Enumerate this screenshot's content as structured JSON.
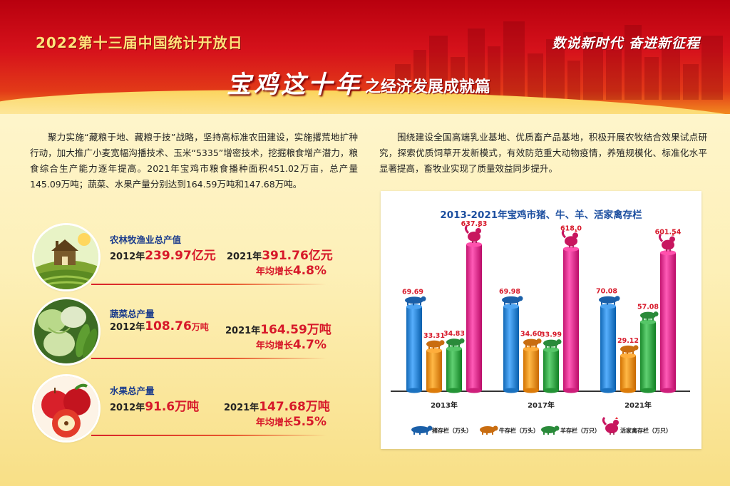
{
  "header": {
    "event_title": "2022第十三届中国统计开放日",
    "slogan": "数说新时代  奋进新征程",
    "main_title_brush": "宝鸡这十年",
    "main_title_rest": "之经济发展成就篇"
  },
  "paragraphs": {
    "left": "聚力实施“藏粮于地、藏粮于技”战略，坚持高标准农田建设，实施撂荒地扩种行动，加大推广小麦宽幅沟播技术、玉米“5335”增密技术，挖掘粮食增产潜力，粮食综合生产能力逐年提高。2021年宝鸡市粮食播种面积451.02万亩，总产量145.09万吨；蔬菜、水果产量分别达到164.59万吨和147.68万吨。",
    "right": "围绕建设全国高端乳业基地、优质畜产品基地，积极开展农牧结合效果试点研究，探索优质饲草开发新模式，有效防范重大动物疫情，养殖规模化、标准化水平显著提高，畜牧业实现了质量效益同步提升。"
  },
  "stats": [
    {
      "title": "农林牧渔业总产值",
      "y1_label": "2012年",
      "y1_value": "239.97",
      "y1_unit": "亿元",
      "y2_label": "2021年",
      "y2_value": "391.76",
      "y2_unit": "亿元",
      "growth_label": "年均增长",
      "growth_value": "4.8%",
      "icon": "farmhouse-icon"
    },
    {
      "title": "蔬菜总产量",
      "y1_label": "2012年",
      "y1_value": "108.76",
      "y1_unit": "万吨",
      "y2_label": "2021年",
      "y2_value": "164.59",
      "y2_unit": "万吨",
      "growth_label": "年均增长",
      "growth_value": "4.7%",
      "icon": "vegetables-icon"
    },
    {
      "title": "水果总产量",
      "y1_label": "2012年",
      "y1_value": "91.6",
      "y1_unit": "万吨",
      "y2_label": "2021年",
      "y2_value": "147.68",
      "y2_unit": "万吨",
      "growth_label": "年均增长",
      "growth_value": "5.5%",
      "icon": "apple-icon"
    }
  ],
  "colors": {
    "pig": "#2f86d4",
    "cattle": "#f0901e",
    "sheep": "#38a84a",
    "poultry": "#e2338f",
    "accent_red": "#d7192a",
    "title_blue": "#1d4fa0"
  },
  "chart_data": {
    "type": "bar",
    "title": "2013-2021年宝鸡市猪、牛、羊、活家禽存栏",
    "categories": [
      "2013年",
      "2017年",
      "2021年"
    ],
    "series": [
      {
        "name": "猪存栏（万头）",
        "icon": "pig-icon",
        "values": [
          69.69,
          69.98,
          70.08
        ]
      },
      {
        "name": "牛存栏（万头）",
        "icon": "cattle-icon",
        "values": [
          33.31,
          34.6,
          29.12
        ]
      },
      {
        "name": "羊存栏（万只）",
        "icon": "sheep-icon",
        "values": [
          34.83,
          33.99,
          57.08
        ]
      },
      {
        "name": "活家禽存栏（万只）",
        "icon": "chicken-icon",
        "values": [
          637.83,
          618.0,
          601.54
        ]
      }
    ],
    "value_labels": [
      [
        "69.69",
        "69.98",
        "70.08"
      ],
      [
        "33.31",
        "34.60",
        "29.12"
      ],
      [
        "34.83",
        "33.99",
        "57.08"
      ],
      [
        "637.83",
        "618.0",
        "601.54"
      ]
    ],
    "legend_position": "bottom",
    "grid": false
  }
}
